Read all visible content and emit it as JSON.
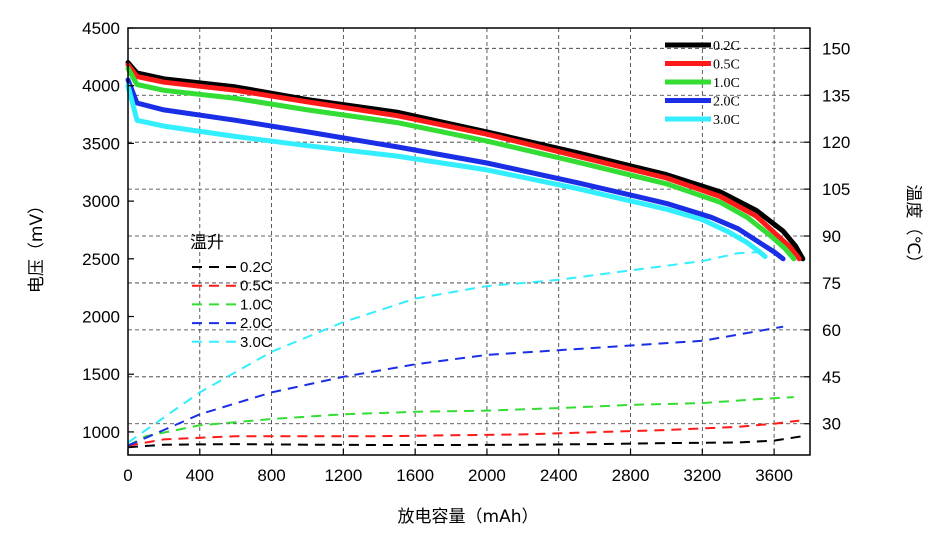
{
  "chart_data": {
    "type": "line",
    "xlabel": "放电容量（mAh）",
    "ylabel_left": "电压（mV）",
    "ylabel_right": "温度（℃）",
    "xlim": [
      0,
      3800
    ],
    "ylim_left": [
      800,
      4500
    ],
    "ylim_right": [
      20,
      156.5
    ],
    "x_ticks": [
      0,
      400,
      800,
      1200,
      1600,
      2000,
      2400,
      2800,
      3200,
      3600
    ],
    "y_left_ticks": [
      1000,
      1500,
      2000,
      2500,
      3000,
      3500,
      4000,
      4500
    ],
    "y_right_ticks": [
      30,
      45,
      60,
      75,
      90,
      105,
      120,
      135,
      150
    ],
    "grid": true,
    "legend_voltage": {
      "placement": "top-right",
      "entries": [
        "0.2C",
        "0.5C",
        "1.0C",
        "2.0C",
        "3.0C"
      ]
    },
    "legend_temperature": {
      "placement": "left-middle",
      "title": "温升",
      "entries": [
        "0.2C",
        "0.5C",
        "1.0C",
        "2.0C",
        "3.0C"
      ]
    },
    "voltage_series": [
      {
        "name": "0.2C",
        "color": "#000000",
        "x": [
          0,
          50,
          200,
          600,
          1000,
          1500,
          2000,
          2500,
          3000,
          3300,
          3500,
          3650,
          3720,
          3760
        ],
        "y": [
          4200,
          4110,
          4060,
          3990,
          3880,
          3770,
          3600,
          3420,
          3230,
          3080,
          2920,
          2740,
          2610,
          2500
        ]
      },
      {
        "name": "0.5C",
        "color": "#ff1a1a",
        "x": [
          0,
          50,
          200,
          600,
          1000,
          1500,
          2000,
          2500,
          3000,
          3300,
          3500,
          3620,
          3690,
          3740
        ],
        "y": [
          4180,
          4080,
          4030,
          3960,
          3860,
          3740,
          3580,
          3390,
          3200,
          3040,
          2870,
          2700,
          2600,
          2500
        ]
      },
      {
        "name": "1.0C",
        "color": "#33dd33",
        "x": [
          0,
          50,
          200,
          600,
          1000,
          1500,
          2000,
          2500,
          3000,
          3300,
          3450,
          3580,
          3660,
          3710
        ],
        "y": [
          4150,
          4010,
          3960,
          3890,
          3790,
          3680,
          3520,
          3340,
          3150,
          2990,
          2860,
          2700,
          2590,
          2500
        ]
      },
      {
        "name": "2.0C",
        "color": "#1a2ee6",
        "x": [
          0,
          50,
          200,
          600,
          1000,
          1500,
          2000,
          2500,
          3000,
          3250,
          3400,
          3520,
          3600,
          3650
        ],
        "y": [
          4050,
          3850,
          3790,
          3700,
          3600,
          3470,
          3330,
          3160,
          2980,
          2860,
          2760,
          2640,
          2560,
          2500
        ]
      },
      {
        "name": "3.0C",
        "color": "#33eeff",
        "x": [
          0,
          50,
          200,
          600,
          1000,
          1500,
          2000,
          2500,
          3000,
          3200,
          3350,
          3450,
          3510,
          3550
        ],
        "y": [
          4000,
          3700,
          3650,
          3560,
          3480,
          3390,
          3270,
          3110,
          2930,
          2840,
          2730,
          2640,
          2570,
          2520
        ]
      }
    ],
    "temperature_series": [
      {
        "name": "0.2C",
        "color": "#000000",
        "x": [
          0,
          200,
          600,
          1000,
          1400,
          1800,
          2200,
          2600,
          3000,
          3400,
          3600,
          3760
        ],
        "y": [
          22.5,
          23.3,
          23.5,
          23.3,
          23.2,
          23.2,
          23.3,
          23.5,
          23.8,
          24.0,
          24.6,
          26.0
        ]
      },
      {
        "name": "0.5C",
        "color": "#ff1a1a",
        "x": [
          0,
          200,
          600,
          1000,
          1400,
          1800,
          2200,
          2600,
          3000,
          3400,
          3600,
          3740
        ],
        "y": [
          23.0,
          25.0,
          26.0,
          26.0,
          26.0,
          26.3,
          26.6,
          27.3,
          28.0,
          29.0,
          30.0,
          31.0
        ]
      },
      {
        "name": "1.0C",
        "color": "#33dd33",
        "x": [
          0,
          100,
          400,
          800,
          1200,
          1600,
          2000,
          2400,
          2800,
          3200,
          3500,
          3710
        ],
        "y": [
          23.0,
          26.0,
          29.5,
          31.5,
          33.0,
          33.8,
          34.2,
          35.0,
          36.0,
          36.6,
          37.8,
          38.5
        ]
      },
      {
        "name": "2.0C",
        "color": "#1a2ee6",
        "x": [
          0,
          200,
          400,
          800,
          1200,
          1600,
          2000,
          2400,
          2800,
          3200,
          3400,
          3650
        ],
        "y": [
          23.0,
          28.0,
          33.0,
          40.0,
          45.0,
          49.0,
          52.0,
          53.5,
          55.0,
          56.5,
          58.5,
          61.0
        ]
      },
      {
        "name": "3.0C",
        "color": "#33eeff",
        "x": [
          0,
          200,
          400,
          800,
          1200,
          1600,
          2000,
          2400,
          2800,
          3200,
          3400,
          3550
        ],
        "y": [
          24.0,
          32.0,
          40.0,
          53.0,
          62.5,
          70.0,
          74.0,
          76.0,
          79.0,
          82.0,
          84.5,
          85.0
        ]
      }
    ]
  }
}
